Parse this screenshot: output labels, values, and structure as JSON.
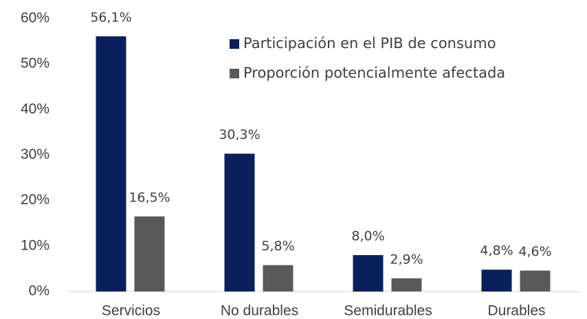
{
  "chart_data": {
    "type": "bar",
    "categories": [
      "Servicios",
      "No durables",
      "Semidurables",
      "Durables"
    ],
    "series": [
      {
        "name": "Participación en el PIB de consumo",
        "color": "#0b1f5c",
        "values": [
          56.1,
          30.3,
          8.0,
          4.8
        ],
        "value_labels": [
          "56,1%",
          "30,3%",
          "8,0%",
          "4,8%"
        ]
      },
      {
        "name": "Proporción potencialmente afectada",
        "color": "#595959",
        "values": [
          16.5,
          5.8,
          2.9,
          4.6
        ],
        "value_labels": [
          "16,5%",
          "5,8%",
          "2,9%",
          "4,6%"
        ]
      }
    ],
    "ylim": [
      0,
      60
    ],
    "yticks": [
      {
        "value": 0,
        "label": "0%"
      },
      {
        "value": 10,
        "label": "10%"
      },
      {
        "value": 20,
        "label": "20%"
      },
      {
        "value": 30,
        "label": "30%"
      },
      {
        "value": 40,
        "label": "40%"
      },
      {
        "value": 50,
        "label": "50%"
      },
      {
        "value": 60,
        "label": "60%"
      }
    ],
    "grid": false,
    "legend": "top-right"
  }
}
